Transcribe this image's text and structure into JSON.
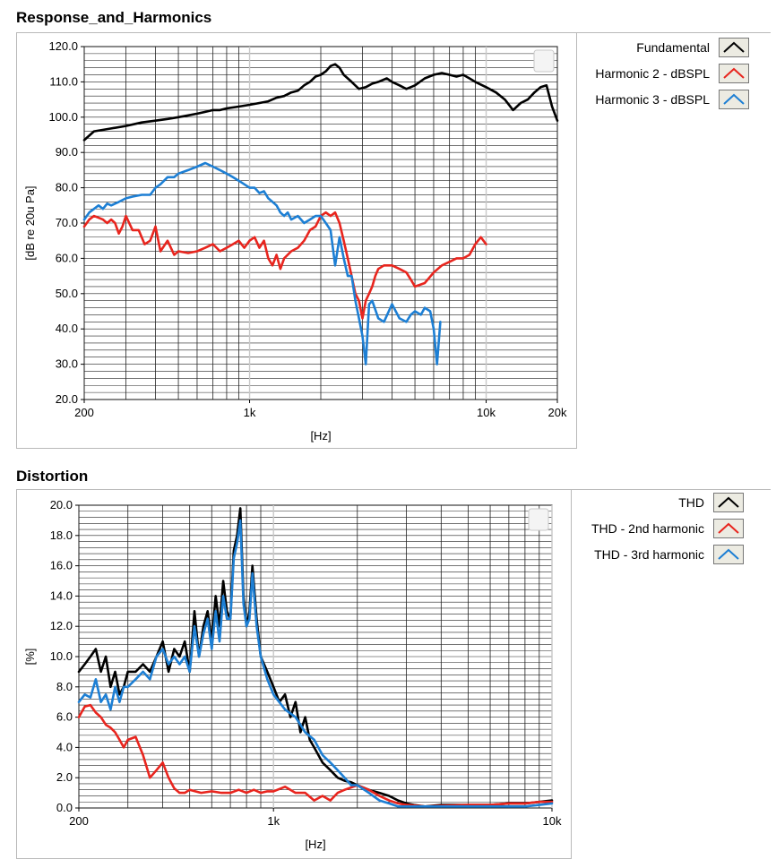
{
  "chart_data": [
    {
      "type": "line",
      "title": "Response_and_Harmonics",
      "xlabel": "[Hz]",
      "ylabel": "[dB re 20u Pa]",
      "xscale": "log",
      "xlim": [
        200,
        20000
      ],
      "ylim": [
        20,
        120
      ],
      "x_tick_labels": [
        "200",
        "1k",
        "10k",
        "20k"
      ],
      "x_tick_values": [
        200,
        1000,
        10000,
        20000
      ],
      "y_ticks": [
        20,
        30,
        40,
        50,
        60,
        70,
        80,
        90,
        100,
        110,
        120
      ],
      "y_tick_labels": [
        "20.0",
        "30.0",
        "40.0",
        "50.0",
        "60.0",
        "70.0",
        "80.0",
        "90.0",
        "100.0",
        "110.0",
        "120.0"
      ],
      "grid": true,
      "legend_position": "right",
      "series": [
        {
          "name": "Fundamental",
          "color": "#000000",
          "x": [
            200,
            220,
            260,
            300,
            350,
            400,
            450,
            500,
            550,
            600,
            650,
            700,
            750,
            800,
            900,
            1000,
            1100,
            1200,
            1300,
            1400,
            1500,
            1600,
            1700,
            1800,
            1900,
            2000,
            2100,
            2200,
            2300,
            2400,
            2500,
            2700,
            2900,
            3100,
            3300,
            3500,
            3800,
            4000,
            4300,
            4600,
            5000,
            5500,
            6000,
            6500,
            7000,
            7500,
            8000,
            8500,
            9000,
            10000,
            11000,
            12000,
            13000,
            14000,
            15000,
            16000,
            17000,
            18000,
            19000,
            20000
          ],
          "values": [
            93.5,
            96,
            96.8,
            97.5,
            98.5,
            99,
            99.5,
            100,
            100.5,
            101,
            101.5,
            102,
            102,
            102.5,
            103,
            103.5,
            104,
            104.5,
            105.5,
            106,
            107,
            107.5,
            109,
            110,
            111.5,
            112,
            113,
            114.5,
            115,
            114,
            112,
            110,
            108,
            108.5,
            109.5,
            110,
            111,
            110,
            109,
            108,
            109,
            111,
            112,
            112.5,
            112,
            111.5,
            112,
            111,
            110,
            108.5,
            107,
            105,
            102,
            104,
            105,
            107,
            108.5,
            109,
            103,
            99
          ]
        },
        {
          "name": "Harmonic 2 - dBSPL",
          "color": "#e8251e",
          "x": [
            200,
            210,
            220,
            230,
            240,
            250,
            260,
            270,
            280,
            290,
            300,
            320,
            340,
            360,
            380,
            400,
            420,
            450,
            480,
            500,
            550,
            600,
            650,
            700,
            750,
            800,
            850,
            900,
            950,
            1000,
            1050,
            1100,
            1150,
            1200,
            1250,
            1300,
            1350,
            1400,
            1500,
            1600,
            1700,
            1800,
            1900,
            2000,
            2100,
            2200,
            2300,
            2400,
            2500,
            2600,
            2700,
            2800,
            2900,
            3000,
            3100,
            3200,
            3300,
            3400,
            3500,
            3700,
            4000,
            4300,
            4600,
            4800,
            5000,
            5500,
            6000,
            6500,
            7000,
            7500,
            8000,
            8500,
            9000,
            9500,
            10000
          ],
          "values": [
            69,
            71,
            72,
            71.5,
            71,
            70,
            71,
            70,
            67,
            69,
            72,
            68,
            68,
            64,
            65,
            69,
            62,
            65,
            61,
            62,
            61.5,
            62,
            63,
            64,
            62,
            63,
            64,
            65,
            63,
            65,
            66,
            63,
            65,
            60,
            58,
            61,
            57,
            60,
            62,
            63,
            65,
            68,
            69,
            72,
            73,
            72,
            73,
            70,
            65,
            60,
            55,
            50,
            48,
            43,
            48,
            50,
            52,
            55,
            57,
            58,
            58,
            57,
            56,
            54,
            52,
            53,
            56,
            58,
            59,
            60,
            60,
            61,
            64,
            66,
            64
          ]
        },
        {
          "name": "Harmonic 3 - dBSPL",
          "color": "#1d7fd4",
          "x": [
            200,
            210,
            220,
            230,
            240,
            250,
            260,
            280,
            300,
            320,
            350,
            380,
            400,
            420,
            450,
            480,
            500,
            550,
            600,
            650,
            700,
            750,
            800,
            850,
            900,
            950,
            1000,
            1050,
            1100,
            1150,
            1200,
            1250,
            1300,
            1350,
            1400,
            1450,
            1500,
            1600,
            1700,
            1800,
            1900,
            2000,
            2100,
            2200,
            2300,
            2400,
            2500,
            2600,
            2700,
            2800,
            2900,
            3000,
            3100,
            3200,
            3300,
            3500,
            3700,
            4000,
            4300,
            4600,
            4800,
            5000,
            5300,
            5500,
            5800,
            6000,
            6200,
            6400
          ],
          "values": [
            71,
            73,
            74,
            75,
            74,
            75.5,
            75,
            76,
            77,
            77.5,
            78,
            78,
            80,
            81,
            83,
            83,
            84,
            85,
            86,
            87,
            86,
            85,
            84,
            83,
            82,
            81,
            80,
            80,
            78.5,
            79,
            77,
            76,
            75,
            73,
            72,
            73,
            71,
            72,
            70,
            71,
            72,
            72,
            70,
            68,
            58,
            66,
            60,
            55,
            55,
            48,
            43,
            38,
            30,
            47,
            48,
            43,
            42,
            47,
            43,
            42,
            44,
            45,
            44,
            46,
            45,
            40,
            30,
            42
          ]
        }
      ]
    },
    {
      "type": "line",
      "title": "Distortion",
      "xlabel": "[Hz]",
      "ylabel": "[%]",
      "xscale": "log",
      "xlim": [
        200,
        10000
      ],
      "ylim": [
        0,
        20
      ],
      "x_tick_labels": [
        "200",
        "1k",
        "10k"
      ],
      "x_tick_values": [
        200,
        1000,
        10000
      ],
      "y_ticks": [
        0,
        2,
        4,
        6,
        8,
        10,
        12,
        14,
        16,
        18,
        20
      ],
      "y_tick_labels": [
        "0.0",
        "2.0",
        "4.0",
        "6.0",
        "8.0",
        "10.0",
        "12.0",
        "14.0",
        "16.0",
        "18.0",
        "20.0"
      ],
      "grid": true,
      "legend_position": "right",
      "series": [
        {
          "name": "THD",
          "color": "#000000",
          "x": [
            200,
            210,
            220,
            230,
            240,
            250,
            260,
            270,
            280,
            290,
            300,
            320,
            340,
            360,
            380,
            400,
            420,
            440,
            460,
            480,
            500,
            520,
            540,
            560,
            580,
            600,
            620,
            640,
            660,
            680,
            700,
            720,
            740,
            760,
            780,
            800,
            820,
            840,
            870,
            900,
            950,
            1000,
            1050,
            1100,
            1150,
            1200,
            1250,
            1300,
            1350,
            1400,
            1500,
            1600,
            1700,
            1800,
            1900,
            2000,
            2200,
            2400,
            2600,
            2800,
            3000,
            3200,
            3500,
            4000,
            4500,
            5000,
            6000,
            7000,
            8000,
            9000,
            10000
          ],
          "values": [
            9,
            9.5,
            10,
            10.5,
            9,
            10,
            8,
            9,
            7.5,
            8,
            9,
            9,
            9.5,
            9,
            10,
            11,
            9,
            10.5,
            10,
            11,
            9,
            13,
            10,
            12,
            13,
            11,
            14,
            12,
            15,
            13,
            12.5,
            17,
            18,
            19.8,
            14,
            12,
            13,
            16,
            12.5,
            10,
            9,
            8,
            7,
            7.5,
            6,
            7,
            5,
            6,
            4.5,
            4,
            3,
            2.5,
            2,
            1.8,
            1.7,
            1.5,
            1.2,
            1,
            0.8,
            0.5,
            0.3,
            0.2,
            0.1,
            0.2,
            0.2,
            0.2,
            0.2,
            0.3,
            0.3,
            0.4,
            0.5
          ]
        },
        {
          "name": "THD - 2nd harmonic",
          "color": "#e8251e",
          "x": [
            200,
            210,
            220,
            230,
            240,
            250,
            260,
            270,
            280,
            290,
            300,
            320,
            340,
            360,
            380,
            400,
            420,
            440,
            460,
            480,
            500,
            550,
            600,
            650,
            700,
            750,
            800,
            850,
            900,
            950,
            1000,
            1100,
            1200,
            1300,
            1400,
            1500,
            1600,
            1700,
            1800,
            2000,
            2200,
            2400,
            2600,
            2800,
            3000,
            3500,
            4000,
            5000,
            6000,
            7000,
            8000,
            9000,
            10000
          ],
          "values": [
            6,
            6.7,
            6.8,
            6.3,
            6,
            5.5,
            5.3,
            5,
            4.5,
            4,
            4.5,
            4.7,
            3.5,
            2,
            2.5,
            3,
            2,
            1.3,
            1,
            1,
            1.2,
            1,
            1.1,
            1,
            1,
            1.2,
            1,
            1.2,
            1,
            1.1,
            1.1,
            1.4,
            1,
            1,
            0.5,
            0.8,
            0.5,
            1,
            1.2,
            1.5,
            1.2,
            0.8,
            0.5,
            0.3,
            0.2,
            0.1,
            0.15,
            0.2,
            0.2,
            0.3,
            0.3,
            0.4,
            0.4
          ]
        },
        {
          "name": "THD - 3rd harmonic",
          "color": "#1d7fd4",
          "x": [
            200,
            210,
            220,
            230,
            240,
            250,
            260,
            270,
            280,
            290,
            300,
            320,
            340,
            360,
            380,
            400,
            420,
            440,
            460,
            480,
            500,
            520,
            540,
            560,
            580,
            600,
            620,
            640,
            660,
            680,
            700,
            720,
            740,
            760,
            780,
            800,
            820,
            840,
            870,
            900,
            950,
            1000,
            1100,
            1200,
            1300,
            1400,
            1500,
            1600,
            1700,
            1800,
            1900,
            2000,
            2200,
            2400,
            2600,
            2800,
            3000,
            3500,
            4000,
            4500,
            5000,
            6000,
            7000,
            8000,
            9000,
            10000
          ],
          "values": [
            7,
            7.5,
            7.3,
            8.5,
            7,
            7.5,
            6.5,
            8,
            7,
            8,
            8,
            8.5,
            9,
            8.5,
            10,
            10.5,
            9.5,
            10,
            9.5,
            10,
            9,
            12,
            10,
            11.5,
            12.5,
            10.5,
            13,
            11,
            14,
            12.5,
            12.5,
            16.5,
            17.5,
            19,
            13.5,
            12,
            12.5,
            15.5,
            12,
            10,
            8.5,
            7.5,
            6.5,
            6,
            5,
            4.5,
            3.5,
            3,
            2.5,
            2,
            1.5,
            1.5,
            1,
            0.5,
            0.3,
            0.1,
            0.1,
            0.1,
            0.1,
            0.1,
            0.1,
            0.1,
            0.1,
            0.1,
            0.2,
            0.3
          ]
        }
      ]
    }
  ]
}
